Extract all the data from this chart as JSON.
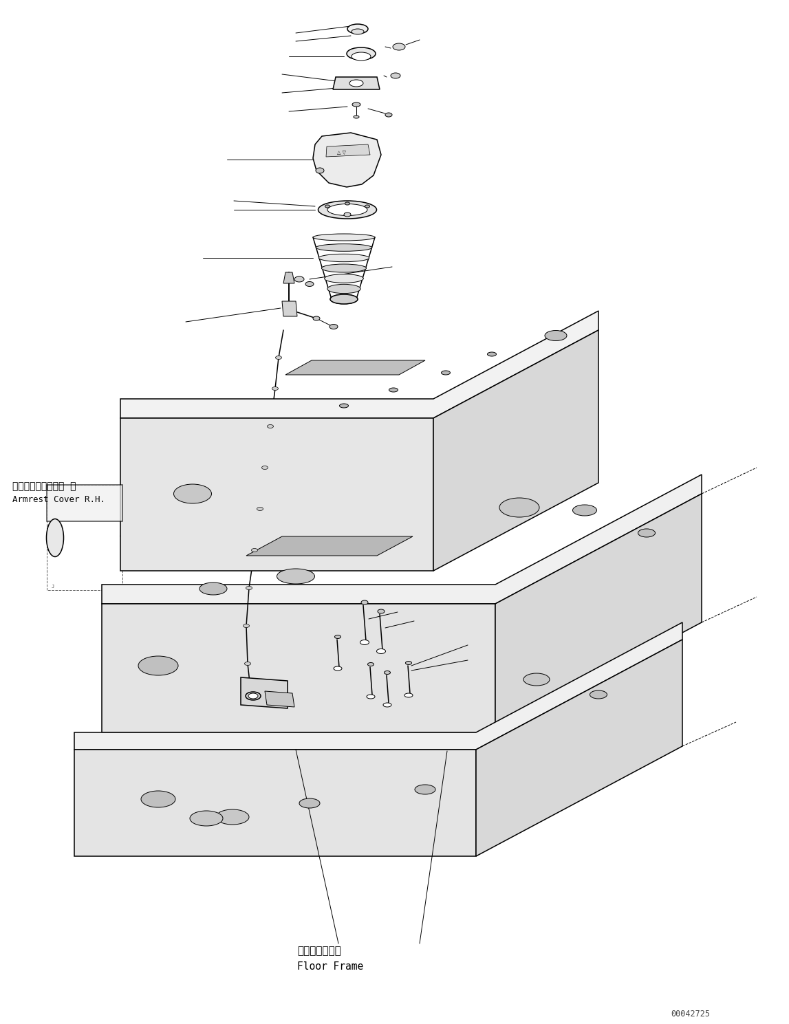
{
  "bg_color": "#ffffff",
  "line_color": "#000000",
  "text_color": "#000000",
  "fig_width": 11.47,
  "fig_height": 14.89,
  "watermark": "00042725",
  "label_armrest_jp": "アームレストカバー  右",
  "label_armrest_en": "Armrest Cover R.H.",
  "label_floor_jp": "フロアフレーム",
  "label_floor_en": "Floor Frame"
}
